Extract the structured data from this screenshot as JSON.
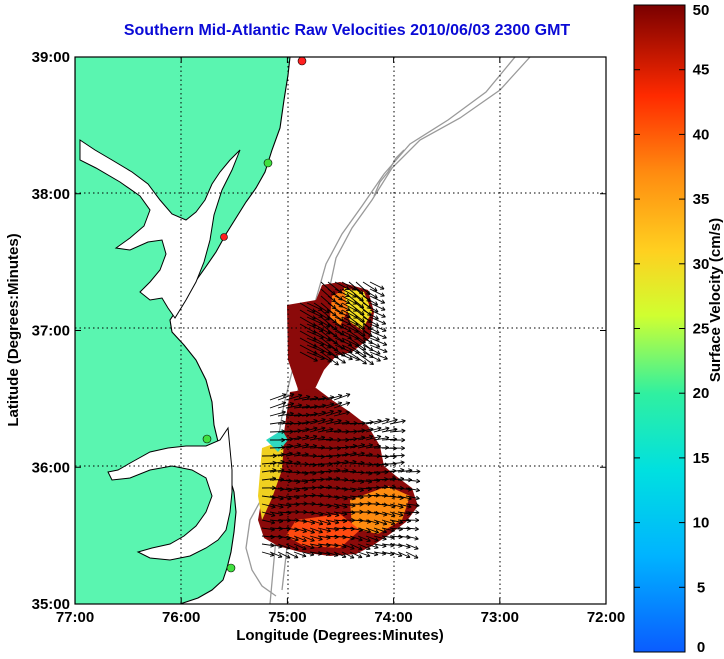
{
  "title": "Southern Mid-Atlantic Raw Velocities 2010/06/03 2300 GMT",
  "chart_data": {
    "type": "heatmap",
    "title": "Southern Mid-Atlantic Raw Velocities 2010/06/03 2300 GMT",
    "xlabel": "Longitude (Degrees:Minutes)",
    "ylabel": "Latitude (Degrees:Minutes)",
    "colorbar_label": "Surface Velocity (cm/s)",
    "xlim": [
      -77,
      -72
    ],
    "ylim": [
      35,
      39
    ],
    "x_ticks": [
      "77:00",
      "76:00",
      "75:00",
      "74:00",
      "73:00",
      "72:00"
    ],
    "y_ticks": [
      "39:00",
      "38:00",
      "37:00",
      "36:00",
      "35:00"
    ],
    "colorbar_ticks": [
      "50",
      "45",
      "40",
      "35",
      "30",
      "25",
      "20",
      "15",
      "10",
      "5",
      "0"
    ],
    "colorbar_range": [
      0,
      50
    ],
    "grid": true,
    "colors": {
      "land": "#5af5b0",
      "title": "#0a0ad6",
      "coastline": "#000000",
      "bathymetry": "#9a9a9a"
    }
  }
}
